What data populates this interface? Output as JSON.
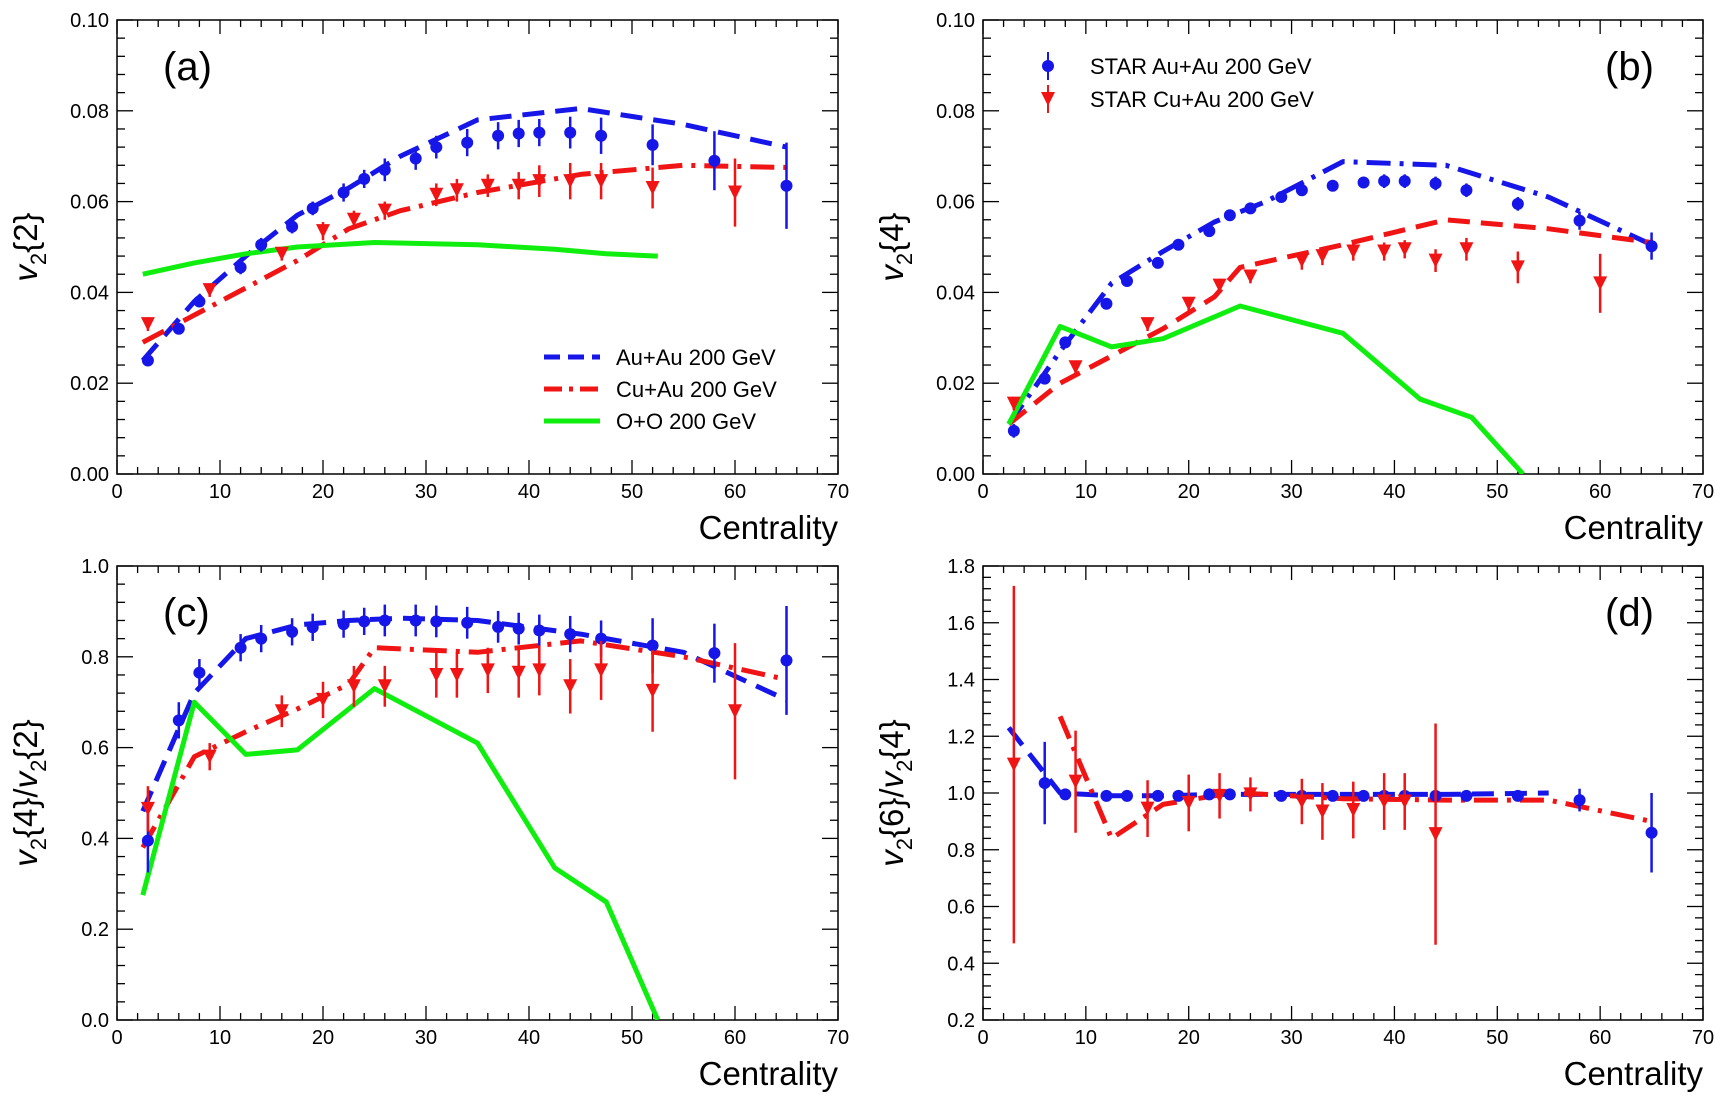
{
  "figure": {
    "colors": {
      "auau": "#1616e8",
      "cuau": "#f01414",
      "oo": "#10ee10",
      "axis": "#000000"
    },
    "legends": {
      "models": [
        {
          "key": "auau",
          "label": "Au+Au 200 GeV",
          "style": "dash"
        },
        {
          "key": "cuau",
          "label": "Cu+Au 200 GeV",
          "style": "dashdot"
        },
        {
          "key": "oo",
          "label": "O+O 200 GeV",
          "style": "solid"
        }
      ],
      "star": [
        {
          "key": "auau",
          "label": "STAR Au+Au 200 GeV",
          "marker": "circle"
        },
        {
          "key": "cuau",
          "label": "STAR Cu+Au 200 GeV",
          "marker": "triangle-down"
        }
      ]
    }
  },
  "chart_data": [
    {
      "panel": "(a)",
      "type": "line",
      "xlabel": "Centrality",
      "ylabel": {
        "base": "v",
        "sub": "2",
        "rest": "{2}"
      },
      "xlim": [
        0,
        70
      ],
      "ylim": [
        0,
        0.1
      ],
      "xticks": [
        0,
        10,
        20,
        30,
        40,
        50,
        60,
        70
      ],
      "yticks": [
        0.0,
        0.02,
        0.04,
        0.06,
        0.08,
        0.1
      ],
      "ytick_labels": [
        "0.00",
        "0.02",
        "0.04",
        "0.06",
        "0.08",
        "0.10"
      ],
      "legend": "models",
      "series": [
        {
          "name": "Au+Au 200 GeV",
          "key": "auau",
          "style": "dash",
          "x": [
            2.5,
            7.5,
            12.5,
            17.5,
            22.5,
            27.5,
            35,
            45,
            55,
            65
          ],
          "y": [
            0.025,
            0.038,
            0.048,
            0.057,
            0.063,
            0.07,
            0.078,
            0.0805,
            0.077,
            0.072
          ]
        },
        {
          "name": "Cu+Au 200 GeV",
          "key": "cuau",
          "style": "dashdot",
          "x": [
            2.5,
            7.5,
            12.5,
            17.5,
            22.5,
            27.5,
            35,
            45,
            55,
            65
          ],
          "y": [
            0.029,
            0.035,
            0.041,
            0.047,
            0.054,
            0.058,
            0.062,
            0.066,
            0.068,
            0.0675
          ]
        },
        {
          "name": "O+O 200 GeV",
          "key": "oo",
          "style": "solid",
          "x": [
            2.5,
            7.5,
            12.5,
            17.5,
            25,
            35,
            42.5,
            47.5,
            52.5
          ],
          "y": [
            0.044,
            0.0465,
            0.0485,
            0.05,
            0.051,
            0.0505,
            0.0495,
            0.0485,
            0.048
          ]
        },
        {
          "name": "STAR Au+Au 200 GeV",
          "key": "auau",
          "marker": "circle",
          "x": [
            3,
            6,
            8,
            12,
            14,
            17,
            19,
            22,
            24,
            26,
            29,
            31,
            34,
            37,
            39,
            41,
            44,
            47,
            52,
            58,
            65
          ],
          "y": [
            0.025,
            0.032,
            0.038,
            0.0455,
            0.0505,
            0.0545,
            0.0585,
            0.062,
            0.065,
            0.067,
            0.0695,
            0.072,
            0.073,
            0.0745,
            0.075,
            0.0752,
            0.0752,
            0.0745,
            0.0725,
            0.069,
            0.0635
          ],
          "err": [
            0.001,
            0.001,
            0.001,
            0.0015,
            0.0015,
            0.0015,
            0.0015,
            0.002,
            0.002,
            0.0025,
            0.0025,
            0.0025,
            0.003,
            0.003,
            0.003,
            0.003,
            0.0035,
            0.004,
            0.0045,
            0.0065,
            0.0095
          ]
        },
        {
          "name": "STAR Cu+Au 200 GeV",
          "key": "cuau",
          "marker": "triangle-down",
          "x": [
            3,
            9,
            16,
            20,
            23,
            26,
            31,
            33,
            36,
            39,
            41,
            44,
            47,
            52,
            60
          ],
          "y": [
            0.033,
            0.0405,
            0.0485,
            0.0535,
            0.056,
            0.058,
            0.0615,
            0.0625,
            0.0635,
            0.0635,
            0.0645,
            0.0645,
            0.0645,
            0.063,
            0.062
          ]
        },
        {
          "name": "STAR Cu+Au 200 GeV err",
          "key": "cuau-err",
          "err": [
            0.0015,
            0.0015,
            0.0015,
            0.002,
            0.002,
            0.002,
            0.0025,
            0.0025,
            0.0025,
            0.003,
            0.0035,
            0.004,
            0.004,
            0.0045,
            0.0075
          ]
        }
      ]
    },
    {
      "panel": "(b)",
      "type": "line",
      "xlabel": "Centrality",
      "ylabel": {
        "base": "v",
        "sub": "2",
        "rest": "{4}"
      },
      "xlim": [
        0,
        70
      ],
      "ylim": [
        0,
        0.1
      ],
      "xticks": [
        0,
        10,
        20,
        30,
        40,
        50,
        60,
        70
      ],
      "yticks": [
        0.0,
        0.02,
        0.04,
        0.06,
        0.08,
        0.1
      ],
      "ytick_labels": [
        "0.00",
        "0.02",
        "0.04",
        "0.06",
        "0.08",
        "0.10"
      ],
      "legend": "star",
      "series": [
        {
          "name": "Au+Au 200 GeV",
          "key": "auau",
          "style": "dashdot",
          "x": [
            2.5,
            7.5,
            12.5,
            17.5,
            22.5,
            27.5,
            35,
            45,
            55,
            65
          ],
          "y": [
            0.011,
            0.027,
            0.042,
            0.049,
            0.0555,
            0.06,
            0.0688,
            0.068,
            0.061,
            0.0505
          ]
        },
        {
          "name": "Cu+Au 200 GeV",
          "key": "cuau",
          "style": "dash",
          "x": [
            2.5,
            7.5,
            12.5,
            17.5,
            22.5,
            25,
            35,
            45,
            55,
            65
          ],
          "y": [
            0.011,
            0.02,
            0.026,
            0.032,
            0.039,
            0.0455,
            0.0505,
            0.056,
            0.054,
            0.051
          ]
        },
        {
          "name": "O+O 200 GeV",
          "key": "oo",
          "style": "solid",
          "x": [
            2.5,
            7.5,
            12.5,
            17.5,
            25,
            35,
            42.5,
            47.5,
            52.5
          ],
          "y": [
            0.011,
            0.0325,
            0.028,
            0.0298,
            0.037,
            0.031,
            0.0165,
            0.0125,
            0.0
          ]
        },
        {
          "name": "STAR Au+Au 200 GeV",
          "key": "auau",
          "marker": "circle",
          "x": [
            3,
            6,
            8,
            12,
            14,
            17,
            19,
            22,
            24,
            26,
            29,
            31,
            34,
            37,
            39,
            41,
            44,
            47,
            52,
            58,
            65
          ],
          "y": [
            0.0095,
            0.021,
            0.029,
            0.0375,
            0.0425,
            0.0465,
            0.0505,
            0.0535,
            0.057,
            0.0585,
            0.061,
            0.0625,
            0.0635,
            0.0642,
            0.0645,
            0.0645,
            0.064,
            0.0625,
            0.0595,
            0.0558,
            0.0502
          ],
          "err": [
            0.0015,
            0.001,
            0.001,
            0.001,
            0.001,
            0.001,
            0.001,
            0.001,
            0.001,
            0.001,
            0.001,
            0.001,
            0.0012,
            0.0012,
            0.0015,
            0.0015,
            0.0015,
            0.0015,
            0.0015,
            0.002,
            0.003
          ]
        },
        {
          "name": "STAR Cu+Au 200 GeV",
          "key": "cuau",
          "marker": "triangle-down",
          "x": [
            3,
            9,
            16,
            20,
            23,
            26,
            31,
            33,
            36,
            39,
            41,
            44,
            47,
            52,
            60
          ],
          "y": [
            0.0155,
            0.0235,
            0.033,
            0.0375,
            0.0415,
            0.0435,
            0.047,
            0.048,
            0.049,
            0.049,
            0.0495,
            0.047,
            0.0495,
            0.0455,
            0.042
          ]
        },
        {
          "name": "STAR Cu+Au 200 GeV err",
          "key": "cuau-err",
          "err": [
            0.0015,
            0.0015,
            0.0015,
            0.0015,
            0.0015,
            0.0015,
            0.002,
            0.002,
            0.002,
            0.002,
            0.002,
            0.0025,
            0.0025,
            0.0035,
            0.0065
          ]
        }
      ]
    },
    {
      "panel": "(c)",
      "type": "line",
      "xlabel": "Centrality",
      "ylabel": {
        "base": "v",
        "sub": "2",
        "rest": "{4}/",
        "base2": "v",
        "sub2": "2",
        "rest2": "{2}"
      },
      "xlim": [
        0,
        70
      ],
      "ylim": [
        0,
        1.0
      ],
      "xticks": [
        0,
        10,
        20,
        30,
        40,
        50,
        60,
        70
      ],
      "yticks": [
        0.0,
        0.2,
        0.4,
        0.6,
        0.8,
        1.0
      ],
      "ytick_labels": [
        "0.0",
        "0.2",
        "0.4",
        "0.6",
        "0.8",
        "1.0"
      ],
      "legend": "none",
      "series": [
        {
          "name": "Au+Au 200 GeV",
          "key": "auau",
          "style": "dash",
          "x": [
            2.5,
            7.5,
            12.5,
            17.5,
            22.5,
            27.5,
            35,
            45,
            55,
            65
          ],
          "y": [
            0.46,
            0.72,
            0.84,
            0.87,
            0.88,
            0.885,
            0.88,
            0.85,
            0.81,
            0.705
          ]
        },
        {
          "name": "Cu+Au 200 GeV",
          "key": "cuau",
          "style": "dashdot",
          "x": [
            2.5,
            7.5,
            12.5,
            17.5,
            22.5,
            25,
            35,
            45,
            55,
            65
          ],
          "y": [
            0.38,
            0.58,
            0.635,
            0.685,
            0.74,
            0.82,
            0.81,
            0.835,
            0.8,
            0.75
          ]
        },
        {
          "name": "O+O 200 GeV",
          "key": "oo",
          "style": "solid",
          "x": [
            2.5,
            7.5,
            12.5,
            17.5,
            25,
            35,
            42.5,
            47.5,
            52.5
          ],
          "y": [
            0.275,
            0.7,
            0.585,
            0.595,
            0.73,
            0.61,
            0.335,
            0.26,
            0.0
          ]
        },
        {
          "name": "STAR Au+Au 200 GeV",
          "key": "auau",
          "marker": "circle",
          "x": [
            3,
            6,
            8,
            12,
            14,
            17,
            19,
            22,
            24,
            26,
            29,
            31,
            34,
            37,
            39,
            41,
            44,
            47,
            52,
            58,
            65
          ],
          "y": [
            0.395,
            0.66,
            0.765,
            0.82,
            0.84,
            0.855,
            0.865,
            0.872,
            0.878,
            0.88,
            0.88,
            0.878,
            0.875,
            0.866,
            0.862,
            0.858,
            0.85,
            0.84,
            0.825,
            0.808,
            0.792
          ],
          "err": [
            0.07,
            0.04,
            0.03,
            0.03,
            0.03,
            0.03,
            0.03,
            0.03,
            0.03,
            0.035,
            0.035,
            0.035,
            0.035,
            0.035,
            0.035,
            0.035,
            0.04,
            0.04,
            0.06,
            0.065,
            0.12
          ]
        },
        {
          "name": "STAR Cu+Au 200 GeV",
          "key": "cuau",
          "marker": "triangle-down",
          "x": [
            3,
            9,
            16,
            20,
            23,
            26,
            31,
            33,
            36,
            39,
            41,
            44,
            47,
            52,
            60
          ],
          "y": [
            0.465,
            0.58,
            0.68,
            0.705,
            0.735,
            0.735,
            0.76,
            0.76,
            0.77,
            0.765,
            0.77,
            0.735,
            0.77,
            0.725,
            0.68
          ]
        },
        {
          "name": "STAR Cu+Au 200 GeV err",
          "key": "cuau-err",
          "err": [
            0.05,
            0.03,
            0.035,
            0.04,
            0.045,
            0.045,
            0.05,
            0.05,
            0.05,
            0.055,
            0.055,
            0.06,
            0.065,
            0.09,
            0.15
          ]
        }
      ]
    },
    {
      "panel": "(d)",
      "type": "line",
      "xlabel": "Centrality",
      "ylabel": {
        "base": "v",
        "sub": "2",
        "rest": "{6}/",
        "base2": "v",
        "sub2": "2",
        "rest2": "{4}"
      },
      "xlim": [
        0,
        70
      ],
      "ylim": [
        0.2,
        1.8
      ],
      "xticks": [
        0,
        10,
        20,
        30,
        40,
        50,
        60,
        70
      ],
      "yticks": [
        0.2,
        0.4,
        0.6,
        0.8,
        1.0,
        1.2,
        1.4,
        1.6,
        1.8
      ],
      "ytick_labels": [
        "0.2",
        "0.4",
        "0.6",
        "0.8",
        "1.0",
        "1.2",
        "1.4",
        "1.6",
        "1.8"
      ],
      "legend": "none",
      "series": [
        {
          "name": "Au+Au 200 GeV",
          "key": "auau",
          "style": "dash",
          "x": [
            2.5,
            7.5,
            12.5,
            17.5,
            22.5,
            27.5,
            35,
            45,
            55
          ],
          "y": [
            1.23,
            1.0,
            0.99,
            0.99,
            0.995,
            0.995,
            0.995,
            0.995,
            1.0
          ]
        },
        {
          "name": "Cu+Au 200 GeV",
          "key": "cuau",
          "style": "dashdot",
          "x": [
            7.5,
            12.5,
            17.5,
            22.5,
            25,
            35,
            45,
            55,
            65
          ],
          "y": [
            1.27,
            0.84,
            0.96,
            0.99,
            1.0,
            0.98,
            0.975,
            0.975,
            0.9
          ]
        },
        {
          "name": "STAR Au+Au 200 GeV",
          "key": "auau",
          "marker": "circle",
          "x": [
            6,
            8,
            12,
            14,
            17,
            19,
            22,
            24,
            29,
            31,
            34,
            37,
            39,
            41,
            44,
            47,
            52,
            58,
            65
          ],
          "y": [
            1.035,
            0.995,
            0.99,
            0.99,
            0.99,
            0.99,
            0.995,
            0.995,
            0.99,
            0.99,
            0.99,
            0.99,
            0.99,
            0.99,
            0.99,
            0.99,
            0.99,
            0.975,
            0.86
          ],
          "err": [
            0.145,
            0.015,
            0.01,
            0.01,
            0.01,
            0.01,
            0.01,
            0.01,
            0.01,
            0.01,
            0.01,
            0.01,
            0.01,
            0.01,
            0.01,
            0.01,
            0.015,
            0.04,
            0.14
          ]
        },
        {
          "name": "STAR Cu+Au 200 GeV",
          "key": "cuau",
          "marker": "triangle-down",
          "x": [
            3,
            9,
            16,
            20,
            23,
            26,
            31,
            33,
            36,
            39,
            41,
            44
          ],
          "y": [
            1.1,
            1.04,
            0.945,
            0.965,
            0.99,
            0.995,
            0.97,
            0.935,
            0.94,
            0.97,
            0.97,
            0.855
          ]
        },
        {
          "name": "STAR Cu+Au 200 GeV err",
          "key": "cuau-err",
          "err": [
            0.63,
            0.18,
            0.1,
            0.1,
            0.08,
            0.06,
            0.08,
            0.1,
            0.1,
            0.1,
            0.1,
            0.39
          ]
        }
      ]
    }
  ]
}
